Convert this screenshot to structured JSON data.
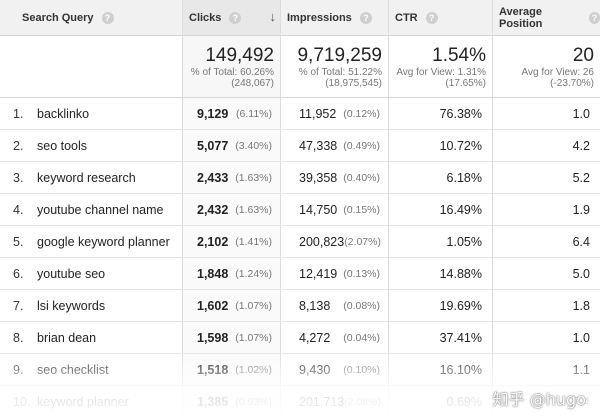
{
  "header": {
    "query": "Search Query",
    "clicks": "Clicks",
    "impressions": "Impressions",
    "ctr": "CTR",
    "position": "Average Position",
    "help_glyph": "?",
    "sort_glyph": "↓"
  },
  "totals": {
    "clicks": {
      "value": "149,492",
      "line1": "% of Total: 60.26%",
      "line2": "(248,067)"
    },
    "impressions": {
      "value": "9,719,259",
      "line1": "% of Total: 51.22%",
      "line2": "(18,975,545)"
    },
    "ctr": {
      "value": "1.54%",
      "line1": "Avg for View: 1.31%",
      "line2": "(17.65%)"
    },
    "position": {
      "value": "20",
      "line1": "Avg for View: 26",
      "line2": "(-23.70%)"
    }
  },
  "rows": [
    {
      "num": "1.",
      "query": "backlinko",
      "clicks": "9,129",
      "clicks_pct": "(6.11%)",
      "impressions": "11,952",
      "impressions_pct": "(0.12%)",
      "ctr": "76.38%",
      "position": "1.0"
    },
    {
      "num": "2.",
      "query": "seo tools",
      "clicks": "5,077",
      "clicks_pct": "(3.40%)",
      "impressions": "47,338",
      "impressions_pct": "(0.49%)",
      "ctr": "10.72%",
      "position": "4.2"
    },
    {
      "num": "3.",
      "query": "keyword research",
      "clicks": "2,433",
      "clicks_pct": "(1.63%)",
      "impressions": "39,358",
      "impressions_pct": "(0.40%)",
      "ctr": "6.18%",
      "position": "5.2"
    },
    {
      "num": "4.",
      "query": "youtube channel name",
      "clicks": "2,432",
      "clicks_pct": "(1.63%)",
      "impressions": "14,750",
      "impressions_pct": "(0.15%)",
      "ctr": "16.49%",
      "position": "1.9"
    },
    {
      "num": "5.",
      "query": "google keyword planner",
      "clicks": "2,102",
      "clicks_pct": "(1.41%)",
      "impressions": "200,823",
      "impressions_pct": "(2.07%)",
      "ctr": "1.05%",
      "position": "6.4"
    },
    {
      "num": "6.",
      "query": "youtube seo",
      "clicks": "1,848",
      "clicks_pct": "(1.24%)",
      "impressions": "12,419",
      "impressions_pct": "(0.13%)",
      "ctr": "14.88%",
      "position": "5.0"
    },
    {
      "num": "7.",
      "query": "lsi keywords",
      "clicks": "1,602",
      "clicks_pct": "(1.07%)",
      "impressions": "8,138",
      "impressions_pct": "(0.08%)",
      "ctr": "19.69%",
      "position": "1.8"
    },
    {
      "num": "8.",
      "query": "brian dean",
      "clicks": "1,598",
      "clicks_pct": "(1.07%)",
      "impressions": "4,272",
      "impressions_pct": "(0.04%)",
      "ctr": "37.41%",
      "position": "1.0"
    },
    {
      "num": "9.",
      "query": "seo checklist",
      "clicks": "1,518",
      "clicks_pct": "(1.02%)",
      "impressions": "9,430",
      "impressions_pct": "(0.10%)",
      "ctr": "16.10%",
      "position": "1.1"
    },
    {
      "num": "10.",
      "query": "keyword planner",
      "clicks": "1,385",
      "clicks_pct": "(0.93%)",
      "impressions": "201,713",
      "impressions_pct": "(2.08%)",
      "ctr": "0.69%",
      "position": "7.4"
    }
  ],
  "watermark": "知乎 @hugo"
}
